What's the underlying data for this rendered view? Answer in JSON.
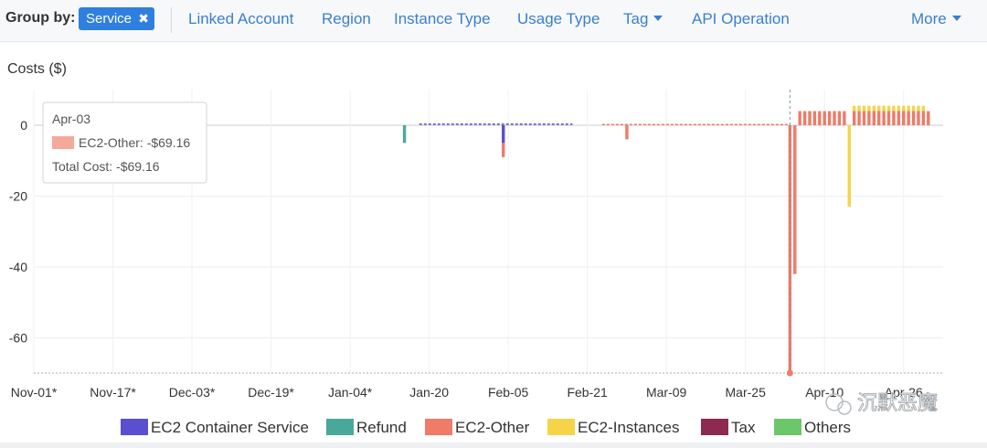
{
  "toolbar": {
    "group_by_label": "Group by:",
    "chip_label": "Service",
    "chip_close_glyph": "✖",
    "tabs": [
      {
        "label": "Linked Account",
        "has_dropdown": false
      },
      {
        "label": "Region",
        "has_dropdown": false
      },
      {
        "label": "Instance Type",
        "has_dropdown": false
      },
      {
        "label": "Usage Type",
        "has_dropdown": false
      },
      {
        "label": "Tag",
        "has_dropdown": true
      },
      {
        "label": "API Operation",
        "has_dropdown": false
      }
    ],
    "more_label": "More",
    "link_color": "#3a7fcf",
    "chip_color": "#2f7fe0"
  },
  "chart_data": {
    "type": "bar",
    "stacked": true,
    "title": "",
    "ylabel": "Costs ($)",
    "xlabel": "",
    "ylim": [
      -69.16,
      8
    ],
    "yticks": [
      0,
      -20,
      -40,
      -60
    ],
    "x_tick_labels": [
      "Nov-01*",
      "Nov-17*",
      "Dec-03*",
      "Dec-19*",
      "Jan-04*",
      "Jan-20",
      "Feb-05",
      "Feb-21",
      "Mar-09",
      "Mar-25",
      "Apr-10",
      "Apr-26"
    ],
    "x_tick_days": [
      0,
      16,
      32,
      48,
      64,
      80,
      96,
      112,
      128,
      144,
      160,
      176
    ],
    "x_range_days": [
      0,
      184
    ],
    "grid": true,
    "legend_position": "bottom",
    "series": [
      {
        "name": "EC2 Container Service",
        "color": "#5a4fcf",
        "points": [
          [
            95,
            -5
          ]
        ]
      },
      {
        "name": "Refund",
        "color": "#4aa89a",
        "points": [
          [
            75,
            -5
          ]
        ]
      },
      {
        "name": "EC2-Other",
        "color": "#ef7b68",
        "points": [
          [
            95,
            -4
          ],
          [
            120,
            -4
          ],
          [
            153,
            -69.16
          ],
          [
            154,
            -42
          ],
          [
            155,
            4
          ],
          [
            156,
            4
          ],
          [
            157,
            4
          ],
          [
            158,
            4
          ],
          [
            159,
            4
          ],
          [
            160,
            4
          ],
          [
            161,
            4
          ],
          [
            162,
            4
          ],
          [
            163,
            4
          ],
          [
            164,
            4
          ],
          [
            166,
            4
          ],
          [
            167,
            4
          ],
          [
            168,
            4
          ],
          [
            169,
            4
          ],
          [
            170,
            4
          ],
          [
            171,
            4
          ],
          [
            172,
            4
          ],
          [
            173,
            4
          ],
          [
            174,
            4
          ],
          [
            175,
            4
          ],
          [
            176,
            4
          ],
          [
            177,
            4
          ],
          [
            178,
            4
          ],
          [
            179,
            4
          ],
          [
            180,
            4
          ],
          [
            181,
            4
          ]
        ]
      },
      {
        "name": "EC2-Instances",
        "color": "#f5d547",
        "points": [
          [
            165,
            -23
          ],
          [
            166,
            1.5
          ],
          [
            167,
            1.5
          ],
          [
            168,
            1.5
          ],
          [
            169,
            1.5
          ],
          [
            170,
            1.5
          ],
          [
            171,
            1.5
          ],
          [
            172,
            1.5
          ],
          [
            173,
            1.5
          ],
          [
            174,
            1.5
          ],
          [
            175,
            1.5
          ],
          [
            176,
            1.5
          ],
          [
            177,
            1.5
          ],
          [
            178,
            1.5
          ],
          [
            179,
            1.5
          ],
          [
            180,
            1.5
          ]
        ]
      },
      {
        "name": "Tax",
        "color": "#8c2a52",
        "points": []
      },
      {
        "name": "Others",
        "color": "#6cc76a",
        "points": []
      }
    ],
    "dashed_lines": [
      {
        "series": "EC2 Container Service",
        "from_day": 78,
        "to_day": 109,
        "value": 0.3
      },
      {
        "series": "EC2-Other",
        "from_day": 115,
        "to_day": 153,
        "value": 0.2
      }
    ],
    "hover_day": 153,
    "tooltip": {
      "date": "Apr-03",
      "series_line": "EC2-Other: -$69.16",
      "total_line": "Total Cost: -$69.16",
      "swatch_color": "#f4a99b"
    },
    "watermark": "沉默恶魔"
  }
}
